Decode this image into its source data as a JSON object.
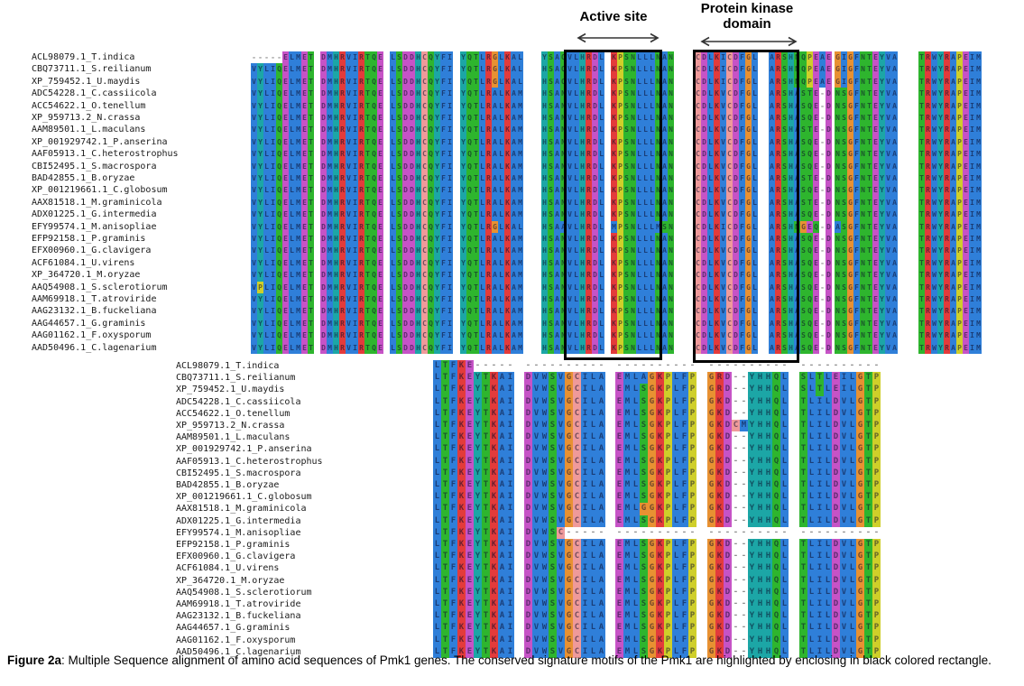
{
  "figure": {
    "caption_label": "Figure 2a",
    "caption_text": ": Multiple Sequence alignment of amino acid sequences of Pmk1 genes. The conserved signature motifs of the Pmk1 are highlighted by enclosing in black colored rectangle."
  },
  "annotations": {
    "active_site": {
      "label": "Active site"
    },
    "protein_kinase_domain": {
      "label_line1": "Protein kinase",
      "label_line2": "domain"
    }
  },
  "color_map": {
    "A": "#2f7fd9",
    "V": "#2f7fd9",
    "L": "#2f7fd9",
    "I": "#2f7fd9",
    "M": "#2f7fd9",
    "F": "#2f7fd9",
    "W": "#2f7fd9",
    "K": "#e33b3b",
    "R": "#e33b3b",
    "D": "#c653c6",
    "E": "#c653c6",
    "N": "#2eb52e",
    "Q": "#2eb52e",
    "S": "#2eb52e",
    "T": "#2eb52e",
    "C": "#ef9a9a",
    "G": "#e89132",
    "P": "#cfcf2a",
    "H": "#1ca6a6",
    "Y": "#1ca6a6"
  },
  "alignments": {
    "top": {
      "rows": [
        {
          "name": "ACL98079.1_T.indica",
          "seq": "-----ELMET DMHRVIRTQE LSDDHCQYFI YQTLRGLKAL YSAQVLHRDL KPSNLLLNAN CDLKICDFGL ARSHNQPEAE GIGFNTEYVA TRWYRAPEIM"
        },
        {
          "name": "CBQ73711.1_S.reilianum",
          "seq": "VYLIQELMET DMHRVIRTQE LSDDHCQYFI YQTLRGLKAL HSAQVLHRDL KPSNLLLNAN CDLKICDFGL ARSHNQPEAE GIGFNTEYVA TRWYRAPEIM"
        },
        {
          "name": "XP_759452.1_U.maydis",
          "seq": "VYLIQELMET DMHRVIRTQE LSDDHCQYFI YQTLRGLKAL HSAQVLHRDL KPSNLLLNAN CDLKICDFGL ARSHNQPEAE GIGFNTEYVA TRWYRAPEIM"
        },
        {
          "name": "ADC54228.1_C.cassiicola",
          "seq": "VYLIQELMET DMHRVIRTQE LSDDHCQYFI YQTLRALKAM HSANVLHRDL KPSNLLLNAN CDLKVCDFGL ARSHASTE-D NSGFNTEYVA TRWYRAPEIM"
        },
        {
          "name": "ACC54622.1_O.tenellum",
          "seq": "VYLIQELMET DMHRVIRTQE LSDDHCQYFI YQTLRALKAM HSANVLHRDL KPSNLLLNAN CDLKVCDFGL ARSHASQE-D NSGFNTEYVA TRWYRAPEIM"
        },
        {
          "name": "XP_959713.2_N.crassa",
          "seq": "VYLIQELMET DMHRVIRTQE LSDDHCQYFI YQTLRALKAM HSANVLHRDL KPSNLLLNAN CDLKVCDFGL ARSHASQE-D NSGFNTEYVA TRWYRAPEIM"
        },
        {
          "name": "AAM89501.1_L.maculans",
          "seq": "VYLIQELMET DMHRVIRTQE LSDDHCQYFI YQTLRALKAM HSANVLHRDL KPSNLLLNAN CDLKVCDFGL ARSHASTE-D NSGFNTEYVA TRWYRAPEIM"
        },
        {
          "name": "XP_001929742.1_P.anserina",
          "seq": "VYLIQELMET DMHRVIRTQE LSDDHCQYFI YQTLRALKAM HSANVLHRDL KPSNLLLNAN CDLKVCDFGL ARSHASQE-D NSGFNTEYVA TRWYRAPEIM"
        },
        {
          "name": "AAF05913.1_C.heterostrophus",
          "seq": "VYLIQELMET DMHRVIRTQE LSDDHCQYFI YQTLRALKAM HSANVLHRDL KPSNLLLNAN CDLKVCDFGL ARSHASQE-D NSGFNTEYVA TRWYRAPEIM"
        },
        {
          "name": "CBI52495.1_S.macrospora",
          "seq": "VYLIQELMET DMHRVIRTQE LSDDHCQYFI YQTLRALKAM HSANVLHRDL KPSNLLLNAN CDLKVCDFGL ARSHASQE-D NSGFNTEYVA TRWYRAPEIM"
        },
        {
          "name": "BAD42855.1_B.oryzae",
          "seq": "VYLIQELMET DMHRVIRTQE LSDDHCQYFI YQTLRALKAM HSANVLHRDL KPSNLLLNAN CDLKVCDFGL ARSHASTE-D NSGFNTEYVA TRWYRAPEIM"
        },
        {
          "name": "XP_001219661.1_C.globosum",
          "seq": "VYLIQELMET DMHRVIRTQE LSDDHCQYFI YQTLRALKAM HSANVLHRDL KPSNLLLNAN CDLKVCDFGL ARSHASQE-D NSGFNTEYVA TRWYRAPEIM"
        },
        {
          "name": "AAX81518.1_M.graminicola",
          "seq": "VYLIQELMET DMHRVIRTQE LSDDHCQYFI YQTLRALKAM HSANVLHRDL KPSNLLLNAN CDLKVCDFGL ARSHASTE-D NSGFNTEYVA TRWYRAPEIM"
        },
        {
          "name": "ADX01225.1_G.intermedia",
          "seq": "VYLIQELMET DMHRVIRTQE LSDDHCQYFI YQTLRALKAM HSANVLHRDL KPSNLLLNAN CDLKVCDFGL ARSHASQE-D NSGFNTEYVA TRWYRAPEIM"
        },
        {
          "name": "EFY99574.1_M.anisopliae",
          "seq": "VYLIQELMET DMHRVIRTQE LSDDHCQYFI YQTLRGLKAL HSAAVLHRDL MPSNLLLMSN CDLKICDFGL ARSHNGEQ-D ASGFNTEYVA TRWYRAPEIM"
        },
        {
          "name": "EFP92158.1_P.graminis",
          "seq": "VYLIQELMET DMHRVIRTQE LSDDHCQYFI YQTLRALKAM HSANVLHRDL KPSNLLLNAN CDLKVCDFGL ARSHASQE-D NSGFNTEYVA TRWYRAPEIM"
        },
        {
          "name": "EFX00960.1_G.clavigera",
          "seq": "VYLIQELMET DMHRVIRTQE LSDDHCQYFI YQTLRALKAM HSANVLHRDL KPSNLLLNAN CDLKVCDFGL ARSHASQE-D NSGFNTEYVA TRWYRAPEIM"
        },
        {
          "name": "ACF61084.1_U.virens",
          "seq": "VYLIQELMET DMHRVIRTQE LSDDHCQYFI YQTLRALKAM HSANVLHRDL KPSNLLLNAN CDLKVCDFGL ARSHASQE-D NSGFNTEYVA TRWYRAPEIM"
        },
        {
          "name": "XP_364720.1_M.oryzae",
          "seq": "VYLIQELMET DMHRVIRTQE LSDDHCQYFI YQTLRALKAM HSANVLHRDL KPSNLLLNAN CDLKVCDFGL ARSHASQE-D NSGFNTEYVA TRWYRAPEIM"
        },
        {
          "name": "AAQ54908.1_S.sclerotiorum",
          "seq": "VPLIQELMET DMHRVIRTQE LSDDHCQYFI YQTLRALKAM HSANVLHRDL KPSNLLLNAN CDLKVCDFGL ARSHASQE-D NSGFNTEYVA TRWYRAPEIM"
        },
        {
          "name": "AAM69918.1_T.atroviride",
          "seq": "VYLIQELMET DMHRVIRTQE LSDDHCQYFI YQTLRALKAM HSANVLHRDL KPSNLLLNAN CDLKVCDFGL ARSHASQE-D NSGFNTEYVA TRWYRAPEIM"
        },
        {
          "name": "AAG23132.1_B.fuckeliana",
          "seq": "VYLIQELMET DMHRVIRTQE LSDDHCQYFI YQTLRALKAM HSANVLHRDL KPSNLLLNAN CDLKVCDFGL ARSHASQE-D NSGFNTEYVA TRWYRAPEIM"
        },
        {
          "name": "AAG44657.1_G.graminis",
          "seq": "VYLIQELMET DMHRVIRTQE LSDDHCQYFI YQTLRALKAM HSANVLHRDL KPSNLLLNAN CDLKVCDFGL ARSHASQE-D NSGFNTEYVA TRWYRAPEIM"
        },
        {
          "name": "AAG01162.1_F.oxysporum",
          "seq": "VYLIQELMET DMHRVIRTQE LSDDHCQYFI YQTLRALKAM HSANVLHRDL KPSNLLLNAN CDLKVCDFGL ARSHASQE-D NSGFNTEYVA TRWYRAPEIM"
        },
        {
          "name": "AAD50496.1_C.lagenarium",
          "seq": "VYLIQELMET DMHRVIRTQE LSDDHCQYFI YQTLRALKAM HSANVLHRDL KPSNLLLNAN CDLKVCDFGL ARSHASQE-D NSGFNTEYVA TRWYRAPEIM"
        }
      ]
    },
    "bottom": {
      "rows": [
        {
          "name": "ACL98079.1_T.indica",
          "seq": "LTFKE----- ---------- ---------- ---------- ----------"
        },
        {
          "name": "CBQ73711.1_S.reilianum",
          "seq": "LTFKEYTKAI DVWSVGCILA EMLAGKPLFP GRD--YHHQL SLTLEILGTP"
        },
        {
          "name": "XP_759452.1_U.maydis",
          "seq": "LTFKEYTKAI DVWSVGCILA EMLSGKPLFP GRD--YHHQL SLTLEILGTP"
        },
        {
          "name": "ADC54228.1_C.cassiicola",
          "seq": "LTFKEYTKAI DVWSVGCILA EMLSGKPLFP GKD--YHHQL TLILDVLGTP"
        },
        {
          "name": "ACC54622.1_O.tenellum",
          "seq": "LTFKEYTKAI DVWSVGCILA EMLSGKPLFP GKD--YHHQL TLILDVLGTP"
        },
        {
          "name": "XP_959713.2_N.crassa",
          "seq": "LTFKEYTKAI DVWSVGCILA EMLSGKPLFP GKDCMYHHQL TLILDVLGTP"
        },
        {
          "name": "AAM89501.1_L.maculans",
          "seq": "LTFKEYTKAI DVWSVGCILA EMLSGKPLFP GKD--YHHQL TLILDVLGTP"
        },
        {
          "name": "XP_001929742.1_P.anserina",
          "seq": "LTFKEYTKAI DVWSVGCILA EMLSGKPLFP GKD--YHHQL TLILDVLGTP"
        },
        {
          "name": "AAF05913.1_C.heterostrophus",
          "seq": "LTFKEYTKAI DVWSVGCILA EMLSGKPLFP GKD--YHHQL TLILDVLGTP"
        },
        {
          "name": "CBI52495.1_S.macrospora",
          "seq": "LTFKEYTKAI DVWSVGCILA EMLSGKPLFP GKD--YHHQL TLILDVLGTP"
        },
        {
          "name": "BAD42855.1_B.oryzae",
          "seq": "LTFKEYTKAI DVWSVGCILA EMLSGKPLFP GKD--YHHQL TLILDVLGTP"
        },
        {
          "name": "XP_001219661.1_C.globosum",
          "seq": "LTFKEYTKAI DVWSVGCILA EMLSGKPLFP GKD--YHHQL TLILDVLGTP"
        },
        {
          "name": "AAX81518.1_M.graminicola",
          "seq": "LTFKEYTKAI DVWSVGCILA EMLGGKPLFP GKD--YHHQL TLILDVLGTP"
        },
        {
          "name": "ADX01225.1_G.intermedia",
          "seq": "LTFKEYTKAI DVWSVGCILA EMLSGKPLFP GKD--YHHQL TLILDVLGTP"
        },
        {
          "name": "EFY99574.1_M.anisopliae",
          "seq": "LTFKEYTKAI DVWSC----- ---------- ---------- ----------"
        },
        {
          "name": "EFP92158.1_P.graminis",
          "seq": "LTFKEYTKAI DVWSVGCILA EMLSGKPLFP GKD--YHHQL TLILDVLGTP"
        },
        {
          "name": "EFX00960.1_G.clavigera",
          "seq": "LTFKEYTKAI DVWSVGCILA EMLSGKPLFP GKD--YHHQL TLILDVLGTP"
        },
        {
          "name": "ACF61084.1_U.virens",
          "seq": "LTFKEYTKAI DVWSVGCILA EMLSGKPLFP GKD--YHHQL TLILDVLGTP"
        },
        {
          "name": "XP_364720.1_M.oryzae",
          "seq": "LTFKEYTKAI DVWSVGCILA EMLSGKPLFP GKD--YHHQL TLILDVLGTP"
        },
        {
          "name": "AAQ54908.1_S.sclerotiorum",
          "seq": "LTFKEYTKAI DVWSVGCILA EMLSGKPLFP GKD--YHHQL TLILDVLGTP"
        },
        {
          "name": "AAM69918.1_T.atroviride",
          "seq": "LTFKEYTKAI DVWSVGCILA EMLSGKPLFP GKD--YHHQL TLILDVLGTP"
        },
        {
          "name": "AAG23132.1_B.fuckeliana",
          "seq": "LTFKEYTKAI DVWSVGCILA EMLSGKPLFP GKD--YHHQL TLILDVLGTP"
        },
        {
          "name": "AAG44657.1_G.graminis",
          "seq": "LTFKEYTKAI DVWSVGCILA EMLSGKPLFP GKD--YHHQL TLILDVLGTP"
        },
        {
          "name": "AAG01162.1_F.oxysporum",
          "seq": "LTFKEYTKAI DVWSVGCILA EMLSGKPLFP GKD--YHHQL TLILDVLGTP"
        },
        {
          "name": "AAD50496.1_C.lagenarium",
          "seq": "LTFKEYTKAI DVWSVGCILA EMLSGKPLFP GKD--YHHQL TLILDVLGTP"
        }
      ]
    }
  }
}
